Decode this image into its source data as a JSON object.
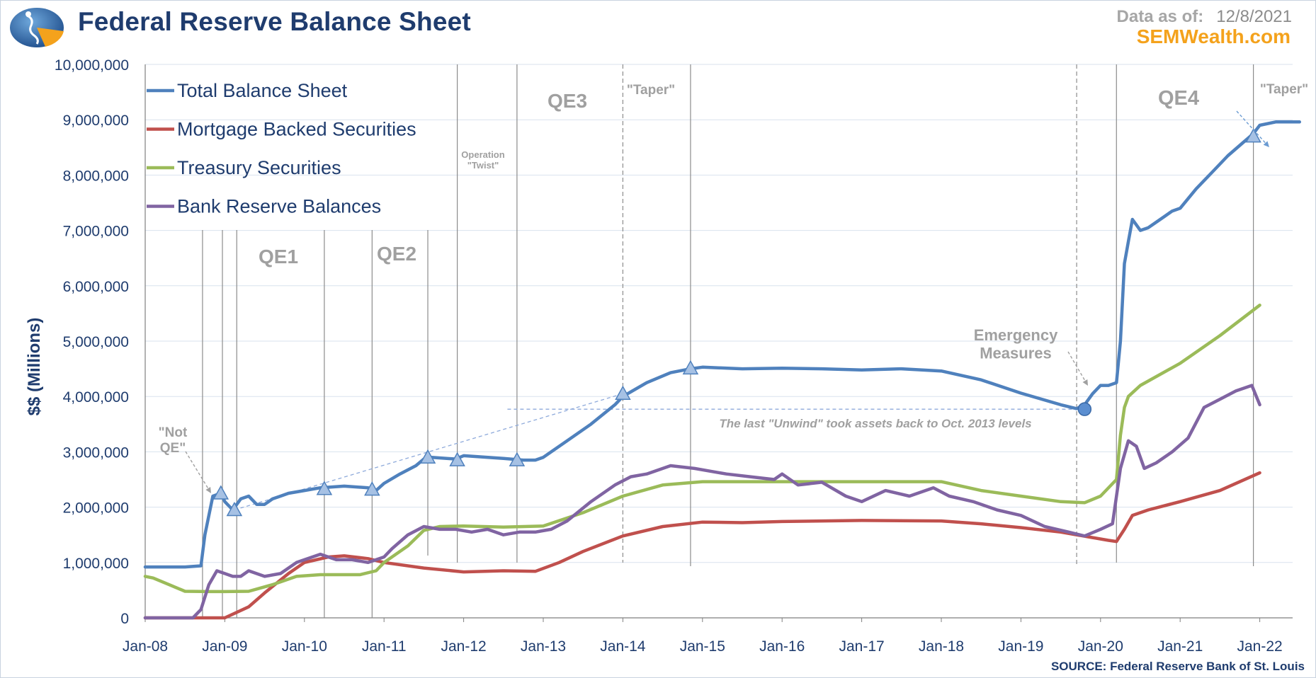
{
  "header": {
    "title": "Federal Reserve Balance Sheet",
    "as_of_label": "Data as of:",
    "as_of_date": "12/8/2021",
    "brand": "SEMWealth.com"
  },
  "footer": {
    "source": "SOURCE:  Federal Reserve Bank of St. Louis"
  },
  "chart_data": {
    "type": "line",
    "title": "Federal Reserve Balance Sheet",
    "ylabel": "$$ (Millions)",
    "xlabel": "",
    "ylim": [
      0,
      10000000
    ],
    "xlim": [
      2008.0,
      2022.5
    ],
    "grid": true,
    "legend_position": "top-left",
    "y_ticks": [
      "0",
      "1,000,000",
      "2,000,000",
      "3,000,000",
      "4,000,000",
      "5,000,000",
      "6,000,000",
      "7,000,000",
      "8,000,000",
      "9,000,000",
      "10,000,000"
    ],
    "x_ticks": [
      "Jan-08",
      "Jan-09",
      "Jan-10",
      "Jan-11",
      "Jan-12",
      "Jan-13",
      "Jan-14",
      "Jan-15",
      "Jan-16",
      "Jan-17",
      "Jan-18",
      "Jan-19",
      "Jan-20",
      "Jan-21",
      "Jan-22"
    ],
    "series": [
      {
        "name": "Total Balance Sheet",
        "color": "#4f81bd",
        "x": [
          2008.0,
          2008.5,
          2008.7,
          2008.75,
          2008.85,
          2008.95,
          2009.0,
          2009.1,
          2009.2,
          2009.3,
          2009.4,
          2009.5,
          2009.6,
          2009.7,
          2009.8,
          2010.0,
          2010.2,
          2010.5,
          2010.8,
          2010.9,
          2011.0,
          2011.2,
          2011.4,
          2011.5,
          2011.6,
          2011.9,
          2012.0,
          2012.5,
          2012.75,
          2012.9,
          2013.0,
          2013.3,
          2013.6,
          2013.9,
          2014.0,
          2014.3,
          2014.6,
          2014.85,
          2015.0,
          2015.5,
          2016.0,
          2016.5,
          2017.0,
          2017.5,
          2018.0,
          2018.5,
          2019.0,
          2019.5,
          2019.7,
          2019.8,
          2019.9,
          2020.0,
          2020.1,
          2020.2,
          2020.25,
          2020.3,
          2020.35,
          2020.4,
          2020.5,
          2020.6,
          2020.7,
          2020.8,
          2020.9,
          2021.0,
          2021.2,
          2021.4,
          2021.6,
          2021.8,
          2021.92,
          2022.0,
          2022.2,
          2022.5
        ],
        "values": [
          920000,
          920000,
          940000,
          1500000,
          2200000,
          2250000,
          2100000,
          1950000,
          2150000,
          2200000,
          2050000,
          2050000,
          2150000,
          2200000,
          2250000,
          2300000,
          2350000,
          2380000,
          2350000,
          2300000,
          2430000,
          2600000,
          2750000,
          2870000,
          2900000,
          2870000,
          2930000,
          2880000,
          2850000,
          2850000,
          2900000,
          3200000,
          3500000,
          3850000,
          4000000,
          4250000,
          4430000,
          4500000,
          4530000,
          4500000,
          4510000,
          4500000,
          4480000,
          4500000,
          4460000,
          4300000,
          4060000,
          3850000,
          3780000,
          3850000,
          4050000,
          4200000,
          4200000,
          4250000,
          5000000,
          6400000,
          6800000,
          7200000,
          7000000,
          7050000,
          7150000,
          7250000,
          7350000,
          7400000,
          7750000,
          8050000,
          8350000,
          8600000,
          8750000,
          8900000,
          8960000,
          8960000
        ]
      },
      {
        "name": "Mortgage Backed Securities",
        "color": "#c0504d",
        "x": [
          2008.0,
          2009.0,
          2009.3,
          2009.5,
          2009.8,
          2010.0,
          2010.3,
          2010.5,
          2010.8,
          2011.0,
          2011.5,
          2012.0,
          2012.5,
          2012.9,
          2013.2,
          2013.5,
          2014.0,
          2014.5,
          2015.0,
          2015.5,
          2016.0,
          2017.0,
          2018.0,
          2018.5,
          2019.0,
          2019.5,
          2019.9,
          2020.1,
          2020.2,
          2020.3,
          2020.4,
          2020.6,
          2021.0,
          2021.5,
          2022.0
        ],
        "values": [
          0,
          0,
          200000,
          450000,
          800000,
          1000000,
          1100000,
          1120000,
          1070000,
          1000000,
          900000,
          830000,
          850000,
          840000,
          1000000,
          1200000,
          1480000,
          1650000,
          1730000,
          1720000,
          1740000,
          1760000,
          1750000,
          1700000,
          1630000,
          1550000,
          1450000,
          1400000,
          1380000,
          1600000,
          1850000,
          1950000,
          2100000,
          2300000,
          2620000
        ]
      },
      {
        "name": "Treasury Securities",
        "color": "#9bbb59",
        "x": [
          2008.0,
          2008.1,
          2008.3,
          2008.5,
          2008.8,
          2009.0,
          2009.3,
          2009.6,
          2009.9,
          2010.2,
          2010.7,
          2010.9,
          2011.0,
          2011.3,
          2011.5,
          2011.7,
          2012.0,
          2012.5,
          2013.0,
          2013.5,
          2014.0,
          2014.5,
          2015.0,
          2016.0,
          2017.0,
          2018.0,
          2018.5,
          2019.0,
          2019.5,
          2019.8,
          2020.0,
          2020.2,
          2020.25,
          2020.3,
          2020.35,
          2020.5,
          2021.0,
          2021.5,
          2022.0
        ],
        "values": [
          750000,
          720000,
          600000,
          480000,
          475000,
          475000,
          480000,
          600000,
          750000,
          780000,
          780000,
          850000,
          1000000,
          1300000,
          1580000,
          1650000,
          1660000,
          1640000,
          1660000,
          1900000,
          2200000,
          2400000,
          2460000,
          2460000,
          2460000,
          2460000,
          2300000,
          2200000,
          2100000,
          2080000,
          2200000,
          2500000,
          3300000,
          3800000,
          4000000,
          4200000,
          4600000,
          5100000,
          5650000
        ]
      },
      {
        "name": "Bank Reserve Balances",
        "color": "#8064a2",
        "x": [
          2008.0,
          2008.6,
          2008.7,
          2008.8,
          2008.9,
          2009.0,
          2009.1,
          2009.2,
          2009.3,
          2009.5,
          2009.7,
          2009.9,
          2010.0,
          2010.2,
          2010.4,
          2010.6,
          2010.8,
          2011.0,
          2011.1,
          2011.3,
          2011.5,
          2011.7,
          2011.9,
          2012.1,
          2012.3,
          2012.5,
          2012.7,
          2012.9,
          2013.1,
          2013.3,
          2013.6,
          2013.9,
          2014.1,
          2014.3,
          2014.6,
          2014.9,
          2015.1,
          2015.3,
          2015.6,
          2015.9,
          2016.0,
          2016.2,
          2016.5,
          2016.8,
          2017.0,
          2017.3,
          2017.6,
          2017.9,
          2018.1,
          2018.4,
          2018.7,
          2019.0,
          2019.3,
          2019.6,
          2019.8,
          2020.0,
          2020.15,
          2020.25,
          2020.35,
          2020.45,
          2020.55,
          2020.7,
          2020.9,
          2021.1,
          2021.3,
          2021.5,
          2021.7,
          2021.9,
          2022.0
        ],
        "values": [
          0,
          0,
          150000,
          600000,
          850000,
          800000,
          750000,
          750000,
          850000,
          750000,
          800000,
          1000000,
          1050000,
          1150000,
          1050000,
          1050000,
          1000000,
          1100000,
          1250000,
          1500000,
          1650000,
          1600000,
          1600000,
          1550000,
          1600000,
          1500000,
          1550000,
          1550000,
          1600000,
          1750000,
          2100000,
          2400000,
          2550000,
          2600000,
          2750000,
          2700000,
          2650000,
          2600000,
          2550000,
          2500000,
          2600000,
          2400000,
          2450000,
          2200000,
          2100000,
          2300000,
          2200000,
          2350000,
          2200000,
          2100000,
          1950000,
          1850000,
          1650000,
          1550000,
          1480000,
          1600000,
          1700000,
          2700000,
          3200000,
          3100000,
          2700000,
          2800000,
          3000000,
          3250000,
          3800000,
          3950000,
          4100000,
          4200000,
          3850000
        ]
      }
    ],
    "annotations": [
      {
        "id": "not_qe",
        "text": [
          "\"Not",
          "QE\""
        ]
      },
      {
        "id": "qe1",
        "text": "QE1"
      },
      {
        "id": "qe2",
        "text": "QE2"
      },
      {
        "id": "twist",
        "text": [
          "Operation",
          "\"Twist\""
        ]
      },
      {
        "id": "qe3",
        "text": "QE3"
      },
      {
        "id": "taper1",
        "text": "\"Taper\""
      },
      {
        "id": "emergency",
        "text": [
          "Emergency",
          "Measures"
        ]
      },
      {
        "id": "qe4",
        "text": "QE4"
      },
      {
        "id": "taper2",
        "text": "\"Taper\""
      },
      {
        "id": "unwind",
        "text": "The last \"Unwind\" took assets back to Oct. 2013 levels"
      }
    ],
    "event_lines": [
      2008.72,
      2008.97,
      2009.15,
      2010.25,
      2010.85,
      2011.55,
      2011.92,
      2012.67,
      2014.0,
      2014.85,
      2019.7,
      2020.2,
      2021.92
    ],
    "event_markers": [
      {
        "x": 2008.95,
        "y": 2250000
      },
      {
        "x": 2009.12,
        "y": 1950000
      },
      {
        "x": 2010.25,
        "y": 2330000
      },
      {
        "x": 2010.85,
        "y": 2320000
      },
      {
        "x": 2011.55,
        "y": 2900000
      },
      {
        "x": 2011.92,
        "y": 2850000
      },
      {
        "x": 2012.67,
        "y": 2850000
      },
      {
        "x": 2014.0,
        "y": 4050000
      },
      {
        "x": 2014.85,
        "y": 4510000
      },
      {
        "x": 2021.92,
        "y": 8700000
      }
    ]
  }
}
